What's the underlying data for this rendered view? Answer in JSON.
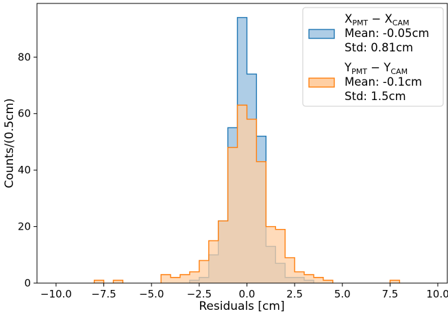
{
  "chart_data": {
    "type": "histogram",
    "xlabel": "Residuals [cm]",
    "ylabel": "Counts/(0.5cm)",
    "xlim": [
      -11,
      10.5
    ],
    "ylim": [
      0,
      99
    ],
    "bin_width": 0.5,
    "xticks": [
      -10.0,
      -7.5,
      -5.0,
      -2.5,
      0.0,
      2.5,
      5.0,
      7.5,
      10.0
    ],
    "xtick_labels": [
      "−10.0",
      "−7.5",
      "−5.0",
      "−2.5",
      "0.0",
      "2.5",
      "5.0",
      "7.5",
      "10.0"
    ],
    "yticks": [
      0,
      20,
      40,
      60,
      80
    ],
    "yticks_labels": [
      "0",
      "20",
      "40",
      "60",
      "80"
    ],
    "grid": false,
    "legend_position": "top-right",
    "series": [
      {
        "legend_lines": [
          {
            "main": "X",
            "sub": "PMT",
            "op": " − ",
            "main2": "X",
            "sub2": "CAM"
          },
          {
            "text": "Mean: -0.05cm"
          },
          {
            "text": "Std: 0.81cm"
          }
        ],
        "line_color": "#1f77b4",
        "fill_color": "#aecde6",
        "edges": [
          -10.0,
          -9.5,
          -9.0,
          -8.5,
          -8.0,
          -7.5,
          -7.0,
          -6.5,
          -6.0,
          -5.5,
          -5.0,
          -4.5,
          -4.0,
          -3.5,
          -3.0,
          -2.5,
          -2.0,
          -1.5,
          -1.0,
          -0.5,
          0.0,
          0.5,
          1.0,
          1.5,
          2.0,
          2.5,
          3.0,
          3.5,
          4.0,
          4.5,
          5.0,
          5.5,
          6.0,
          6.5,
          7.0,
          7.5,
          8.0,
          8.5,
          9.0,
          9.5,
          10.0
        ],
        "counts": [
          0,
          0,
          0,
          0,
          0,
          0,
          0,
          0,
          0,
          0,
          0,
          0,
          0,
          0,
          1,
          2,
          10,
          22,
          55,
          94,
          74,
          52,
          13,
          7,
          2,
          2,
          1,
          0,
          0,
          0,
          0,
          0,
          0,
          0,
          0,
          0,
          0,
          0,
          0,
          0
        ]
      },
      {
        "legend_lines": [
          {
            "main": "Y",
            "sub": "PMT",
            "op": " − ",
            "main2": "Y",
            "sub2": "CAM"
          },
          {
            "text": "Mean: -0.1cm"
          },
          {
            "text": "Std: 1.5cm"
          }
        ],
        "line_color": "#ff7f0e",
        "fill_color": "#ffcfa3",
        "edges": [
          -10.0,
          -9.5,
          -9.0,
          -8.5,
          -8.0,
          -7.5,
          -7.0,
          -6.5,
          -6.0,
          -5.5,
          -5.0,
          -4.5,
          -4.0,
          -3.5,
          -3.0,
          -2.5,
          -2.0,
          -1.5,
          -1.0,
          -0.5,
          0.0,
          0.5,
          1.0,
          1.5,
          2.0,
          2.5,
          3.0,
          3.5,
          4.0,
          4.5,
          5.0,
          5.5,
          6.0,
          6.5,
          7.0,
          7.5,
          8.0,
          8.5,
          9.0,
          9.5,
          10.0
        ],
        "counts": [
          0,
          0,
          0,
          0,
          1,
          0,
          1,
          0,
          0,
          0,
          0,
          3,
          2,
          3,
          4,
          8,
          15,
          22,
          48,
          63,
          58,
          43,
          20,
          19,
          9,
          4,
          3,
          2,
          1,
          0,
          0,
          0,
          0,
          0,
          0,
          1,
          0,
          0,
          0,
          0
        ]
      }
    ]
  }
}
